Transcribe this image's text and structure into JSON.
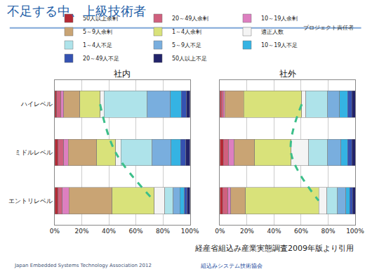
{
  "title": "不足する中、上級技術者",
  "header_note": "プロジェクト責任者",
  "source": "経産省組込み産業実態調査2009年版より引用",
  "footer": [
    "Japan Embedded Systems Technology Association 2012",
    "組込みシステム技術協会"
  ],
  "chart_data": [
    {
      "type": "bar",
      "title": "社内",
      "orientation": "horizontal",
      "stacked": true,
      "grid": true,
      "legend": "top",
      "categories": [
        "ハイレベル",
        "ミドルレベル",
        "エントリレベル"
      ],
      "xlim": [
        0,
        100
      ],
      "xticks": [
        {
          "value": 0,
          "label": "0%"
        },
        {
          "value": 20,
          "label": "20%"
        },
        {
          "value": 40,
          "label": "40%"
        },
        {
          "value": 60,
          "label": "60%"
        },
        {
          "value": 80,
          "label": "80%"
        },
        {
          "value": 100,
          "label": "100%"
        }
      ],
      "series": [
        {
          "name": "50人以上余剰",
          "color": "#b52a35",
          "values": [
            1.5,
            2.5,
            2.5
          ]
        },
        {
          "name": "20～49人余剰",
          "color": "#d0607e",
          "values": [
            3,
            4,
            3
          ]
        },
        {
          "name": "10～19人余剰",
          "color": "#dd7fc0",
          "values": [
            2,
            3.5,
            5
          ]
        },
        {
          "name": "5～9人余剰",
          "color": "#c9a474",
          "values": [
            12,
            21,
            32
          ]
        },
        {
          "name": "1～4人余剰",
          "color": "#d9e27a",
          "values": [
            15,
            14,
            31
          ]
        },
        {
          "name": "適正人数",
          "color": "#f4f4f4",
          "values": [
            3,
            4,
            8
          ]
        },
        {
          "name": "1～4人不足",
          "color": "#aee3ea",
          "values": [
            32,
            23,
            6
          ]
        },
        {
          "name": "5～9人不足",
          "color": "#79aede",
          "values": [
            17,
            14,
            5
          ]
        },
        {
          "name": "10～19人不足",
          "color": "#35b3e3",
          "values": [
            8,
            7,
            3.5
          ]
        },
        {
          "name": "20～49人不足",
          "color": "#3552b2",
          "values": [
            4,
            4,
            2
          ]
        },
        {
          "name": "50人以上不足",
          "color": "#22236a",
          "values": [
            2.5,
            3,
            2
          ]
        }
      ]
    },
    {
      "type": "bar",
      "title": "社外",
      "orientation": "horizontal",
      "stacked": true,
      "grid": true,
      "categories": [
        "ハイレベル",
        "ミドルレベル",
        "エントリレベル"
      ],
      "xlim": [
        0,
        100
      ],
      "xticks": [
        {
          "value": 0,
          "label": "0%"
        },
        {
          "value": 20,
          "label": "20%"
        },
        {
          "value": 40,
          "label": "40%"
        },
        {
          "value": 60,
          "label": "60%"
        },
        {
          "value": 80,
          "label": "80%"
        },
        {
          "value": 100,
          "label": "100%"
        }
      ],
      "series": [
        {
          "name": "50人以上余剰",
          "color": "#b52a35",
          "values": [
            1,
            2.5,
            2
          ]
        },
        {
          "name": "20～49人余剰",
          "color": "#d0607e",
          "values": [
            1.5,
            4,
            4
          ]
        },
        {
          "name": "10～19人余剰",
          "color": "#dd7fc0",
          "values": [
            1,
            4,
            2
          ]
        },
        {
          "name": "5～9人余剰",
          "color": "#c9a474",
          "values": [
            14,
            15,
            11
          ]
        },
        {
          "name": "1～4人余剰",
          "color": "#d9e27a",
          "values": [
            43,
            27,
            54
          ]
        },
        {
          "name": "適正人数",
          "color": "#f4f4f4",
          "values": [
            3,
            13,
            6
          ]
        },
        {
          "name": "1～4人不足",
          "color": "#aee3ea",
          "values": [
            16,
            14,
            8
          ]
        },
        {
          "name": "5～9人不足",
          "color": "#79aede",
          "values": [
            9,
            10,
            6
          ]
        },
        {
          "name": "10～19人不足",
          "color": "#35b3e3",
          "values": [
            6,
            5,
            3
          ]
        },
        {
          "name": "20～49人不足",
          "color": "#3552b2",
          "values": [
            3,
            3,
            2
          ]
        },
        {
          "name": "50人以上不足",
          "color": "#22236a",
          "values": [
            2.5,
            2.5,
            2
          ]
        }
      ]
    }
  ]
}
